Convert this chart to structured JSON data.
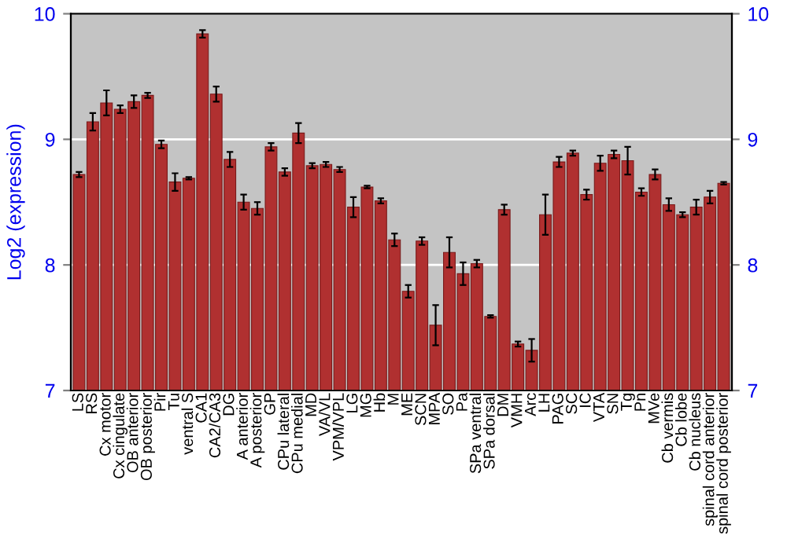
{
  "chart_data": {
    "type": "bar",
    "ylabel": "Log2 (expression)",
    "categories": [
      "LS",
      "RS",
      "Cx motor",
      "Cx cingulate",
      "OB anterior",
      "OB posterior",
      "Pir",
      "Tu",
      "ventral S",
      "CA1",
      "CA2/CA3",
      "DG",
      "A anterior",
      "A posterior",
      "GP",
      "CPu lateral",
      "CPu medial",
      "MD",
      "VA/VL",
      "VPM/VPL",
      "LG",
      "MG",
      "Hb",
      "M",
      "ME",
      "SCN",
      "MPA",
      "SO",
      "Pa",
      "SPa ventral",
      "SPa dorsal",
      "DM",
      "VMH",
      "Arc",
      "LH",
      "PAG",
      "SC",
      "IC",
      "VTA",
      "SN",
      "Tg",
      "Pn",
      "MVe",
      "Cb vermis",
      "Cb lobe",
      "Cb nucleus",
      "spinal cord anterior",
      "spinal cord posterior"
    ],
    "values": [
      8.72,
      9.14,
      9.29,
      9.24,
      9.3,
      9.35,
      8.96,
      8.66,
      8.69,
      9.84,
      9.36,
      8.84,
      8.5,
      8.45,
      8.94,
      8.74,
      9.05,
      8.79,
      8.8,
      8.76,
      8.46,
      8.62,
      8.51,
      8.2,
      7.79,
      8.19,
      7.52,
      8.1,
      7.93,
      8.01,
      7.59,
      8.44,
      7.37,
      7.32,
      8.4,
      8.82,
      8.89,
      8.56,
      8.81,
      8.88,
      8.83,
      8.58,
      8.72,
      8.48,
      8.4,
      8.46,
      8.54,
      8.65
    ],
    "errors": [
      0.02,
      0.07,
      0.1,
      0.03,
      0.05,
      0.02,
      0.03,
      0.07,
      0.01,
      0.03,
      0.06,
      0.06,
      0.06,
      0.05,
      0.03,
      0.03,
      0.08,
      0.02,
      0.02,
      0.02,
      0.08,
      0.01,
      0.02,
      0.05,
      0.05,
      0.03,
      0.16,
      0.12,
      0.09,
      0.03,
      0.01,
      0.04,
      0.02,
      0.09,
      0.16,
      0.04,
      0.02,
      0.04,
      0.06,
      0.03,
      0.11,
      0.03,
      0.04,
      0.05,
      0.02,
      0.06,
      0.05,
      0.01
    ],
    "color": "#b03030",
    "ylim": [
      7,
      10
    ],
    "yticks": [
      7,
      8,
      9,
      10
    ],
    "y2lim": [
      7,
      10
    ],
    "y2ticks": [
      7,
      8,
      9,
      10
    ],
    "grid": "y"
  }
}
